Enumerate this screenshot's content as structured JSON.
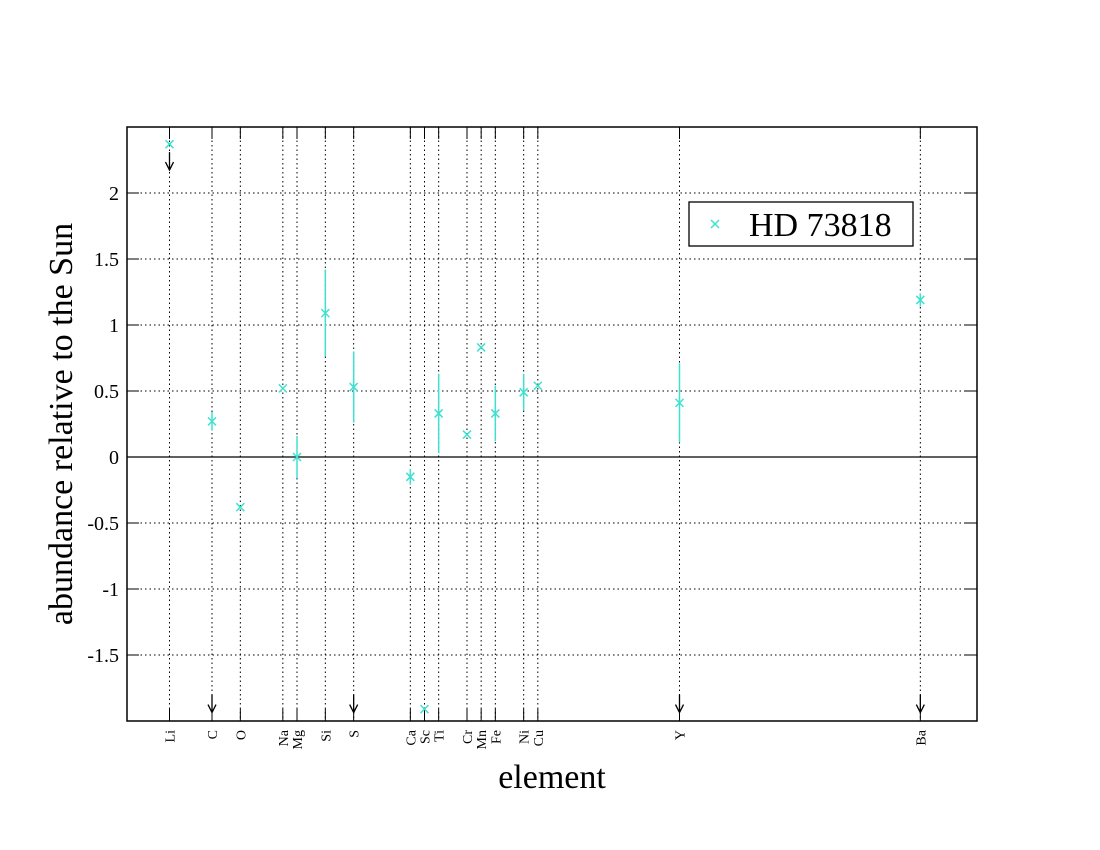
{
  "chart_data": {
    "type": "errorbar-scatter",
    "xlabel": "element",
    "ylabel": "abundance relative to the Sun",
    "xlim": [
      0,
      60
    ],
    "ylim": [
      -2,
      2.5
    ],
    "xticks": [
      {
        "value": 3,
        "label": "Li"
      },
      {
        "value": 6,
        "label": "C"
      },
      {
        "value": 8,
        "label": "O"
      },
      {
        "value": 11,
        "label": "Na"
      },
      {
        "value": 12,
        "label": "Mg"
      },
      {
        "value": 14,
        "label": "Si"
      },
      {
        "value": 16,
        "label": "S"
      },
      {
        "value": 20,
        "label": "Ca"
      },
      {
        "value": 21,
        "label": "Sc"
      },
      {
        "value": 22,
        "label": "Ti"
      },
      {
        "value": 24,
        "label": "Cr"
      },
      {
        "value": 25,
        "label": "Mn"
      },
      {
        "value": 26,
        "label": "Fe"
      },
      {
        "value": 28,
        "label": "Ni"
      },
      {
        "value": 29,
        "label": "Cu"
      },
      {
        "value": 39,
        "label": "Y"
      },
      {
        "value": 56,
        "label": "Ba"
      }
    ],
    "yticks": [
      -1.5,
      -1,
      -0.5,
      0,
      0.5,
      1,
      1.5,
      2
    ],
    "grid": true,
    "zero_line": true,
    "legend": "upper right",
    "series": [
      {
        "name": "HD 73818",
        "color": "#40e0d0",
        "x": [
          3,
          6,
          8,
          11,
          12,
          14,
          16,
          20,
          21,
          22,
          24,
          25,
          26,
          28,
          29,
          39,
          56
        ],
        "values": [
          2.37,
          0.27,
          -0.38,
          0.52,
          0.0,
          1.09,
          0.53,
          -0.15,
          -1.91,
          0.33,
          0.17,
          0.83,
          0.33,
          0.49,
          0.54,
          0.41,
          1.19
        ],
        "errors": [
          0,
          0.07,
          0,
          0,
          0.16,
          0.33,
          0.27,
          0.06,
          0,
          0.3,
          0,
          0,
          0.21,
          0.14,
          0,
          0.3,
          0.05
        ]
      }
    ],
    "arrows": {
      "x": [
        3,
        6,
        16,
        39,
        56
      ],
      "values": [
        2.31,
        -1.8,
        -1.8,
        -1.8,
        -1.8
      ]
    }
  }
}
